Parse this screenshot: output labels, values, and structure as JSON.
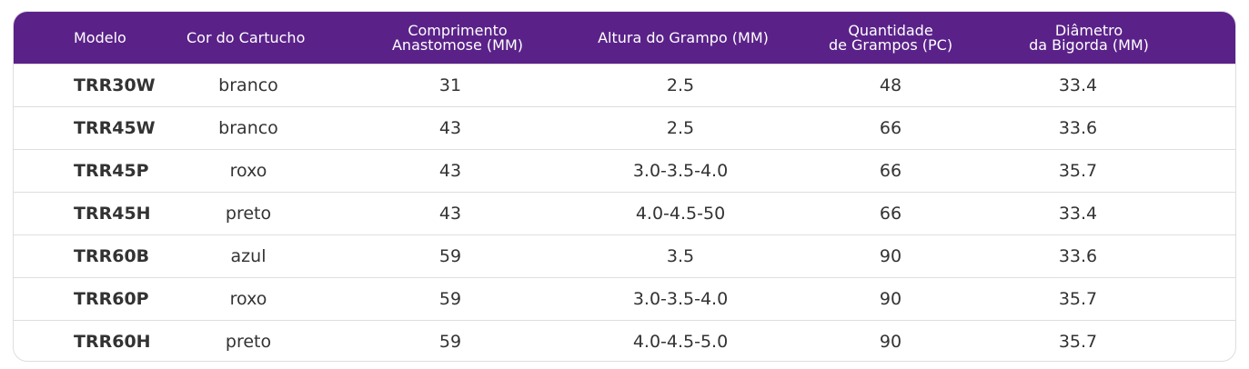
{
  "table": {
    "headers": [
      "Modelo",
      "Cor do Cartucho",
      "Comprimento\nAnastomose (MM)",
      "Altura do Grampo (MM)",
      "Quantidade\nde Grampos (PC)",
      "Diâmetro\nda Bigorda (MM)"
    ],
    "rows": [
      [
        "TRR30W",
        "branco",
        "31",
        "2.5",
        "48",
        "33.4"
      ],
      [
        "TRR45W",
        "branco",
        "43",
        "2.5",
        "66",
        "33.6"
      ],
      [
        "TRR45P",
        "roxo",
        "43",
        "3.0-3.5-4.0",
        "66",
        "35.7"
      ],
      [
        "TRR45H",
        "preto",
        "43",
        "4.0-4.5-50",
        "66",
        "33.4"
      ],
      [
        "TRR60B",
        "azul",
        "59",
        "3.5",
        "90",
        "33.6"
      ],
      [
        "TRR60P",
        "roxo",
        "59",
        "3.0-3.5-4.0",
        "90",
        "35.7"
      ],
      [
        "TRR60H",
        "preto",
        "59",
        "4.0-4.5-5.0",
        "90",
        "35.7"
      ]
    ]
  },
  "colors": {
    "header_background": "#5a2289",
    "header_text": "#ffffff",
    "body_text": "#333333",
    "row_divider": "#dedede"
  }
}
